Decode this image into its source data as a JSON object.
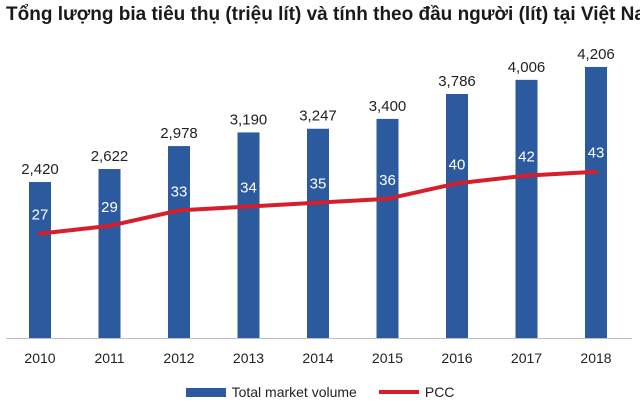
{
  "chart_data": {
    "type": "bar",
    "title": "Tổng lượng bia tiêu thụ (triệu lít) và tính theo đầu người (lít) tại Việt Nam",
    "categories": [
      "2010",
      "2011",
      "2012",
      "2013",
      "2014",
      "2015",
      "2016",
      "2017",
      "2018"
    ],
    "series": [
      {
        "name": "Total market volume",
        "type": "bar",
        "values": [
          2420,
          2622,
          2978,
          3190,
          3247,
          3400,
          3786,
          4006,
          4206
        ],
        "labels": [
          "2,420",
          "2,622",
          "2,978",
          "3,190",
          "3,247",
          "3,400",
          "3,786",
          "4,006",
          "4,206"
        ]
      },
      {
        "name": "PCC",
        "type": "line",
        "values": [
          27,
          29,
          33,
          34,
          35,
          36,
          40,
          42,
          43
        ],
        "labels": [
          "27",
          "29",
          "33",
          "34",
          "35",
          "36",
          "40",
          "42",
          "43"
        ]
      }
    ],
    "ylim": [
      0,
      4500
    ],
    "y2lim": [
      0,
      75
    ],
    "grid": false,
    "legend": "bottom",
    "colors": {
      "bar": "#2b5a9e",
      "line": "#d51f2a",
      "bar_value_label": "#222222",
      "line_value_label": "#ffffff"
    }
  }
}
